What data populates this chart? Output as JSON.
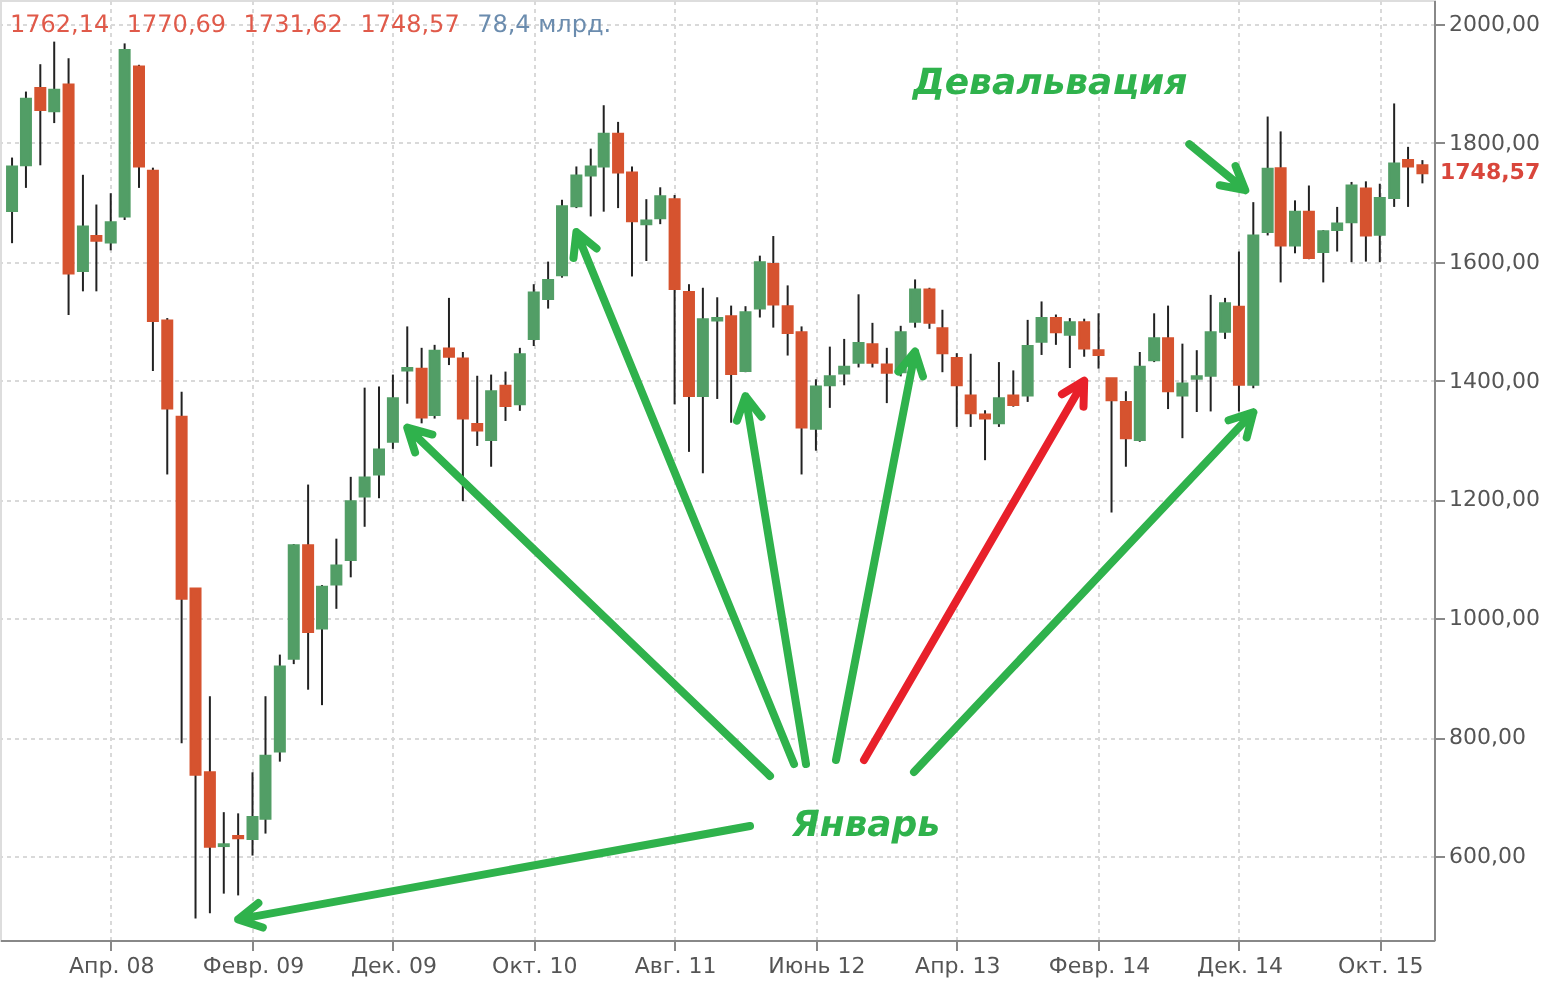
{
  "chart_data": {
    "type": "candlestick",
    "x": [
      "2007-09",
      "2007-10",
      "2007-11",
      "2007-12",
      "2008-01",
      "2008-02",
      "2008-03",
      "2008-04",
      "2008-05",
      "2008-06",
      "2008-07",
      "2008-08",
      "2008-09",
      "2008-10",
      "2008-11",
      "2008-12",
      "2009-01",
      "2009-02",
      "2009-03",
      "2009-04",
      "2009-05",
      "2009-06",
      "2009-07",
      "2009-08",
      "2009-09",
      "2009-10",
      "2009-11",
      "2009-12",
      "2010-01",
      "2010-02",
      "2010-03",
      "2010-04",
      "2010-05",
      "2010-06",
      "2010-07",
      "2010-08",
      "2010-09",
      "2010-10",
      "2010-11",
      "2010-12",
      "2011-01",
      "2011-02",
      "2011-03",
      "2011-04",
      "2011-05",
      "2011-06",
      "2011-07",
      "2011-08",
      "2011-09",
      "2011-10",
      "2011-11",
      "2011-12",
      "2012-01",
      "2012-02",
      "2012-03",
      "2012-04",
      "2012-05",
      "2012-06",
      "2012-07",
      "2012-08",
      "2012-09",
      "2012-10",
      "2012-11",
      "2012-12",
      "2013-01",
      "2013-02",
      "2013-03",
      "2013-04",
      "2013-05",
      "2013-06",
      "2013-07",
      "2013-08",
      "2013-09",
      "2013-10",
      "2013-11",
      "2013-12",
      "2014-01",
      "2014-02",
      "2014-03",
      "2014-04",
      "2014-05",
      "2014-06",
      "2014-07",
      "2014-08",
      "2014-09",
      "2014-10",
      "2014-11",
      "2014-12",
      "2015-01",
      "2015-02",
      "2015-03",
      "2015-04",
      "2015-05",
      "2015-06",
      "2015-07",
      "2015-08",
      "2015-09",
      "2015-10",
      "2015-11",
      "2015-12",
      "2016-01"
    ],
    "ohlc": [
      [
        1685,
        1775,
        1631,
        1760
      ],
      [
        1762,
        1886,
        1724,
        1874
      ],
      [
        1892,
        1932,
        1762,
        1855
      ],
      [
        1853,
        1970,
        1833,
        1889
      ],
      [
        1898,
        1942,
        1510,
        1580
      ],
      [
        1584,
        1746,
        1550,
        1659
      ],
      [
        1643,
        1696,
        1550,
        1635
      ],
      [
        1632,
        1715,
        1619,
        1666
      ],
      [
        1676,
        1967,
        1670,
        1956
      ],
      [
        1928,
        1931,
        1724,
        1760
      ],
      [
        1753,
        1758,
        1416,
        1500
      ],
      [
        1501,
        1505,
        1242,
        1353
      ],
      [
        1339,
        1381,
        790,
        1033
      ],
      [
        1050,
        1050,
        495,
        737
      ],
      [
        741,
        869,
        504,
        616
      ],
      [
        617,
        674,
        537,
        620
      ],
      [
        634,
        672,
        534,
        630
      ],
      [
        629,
        741,
        601,
        666
      ],
      [
        663,
        869,
        638,
        769
      ],
      [
        776,
        939,
        759,
        919
      ],
      [
        932,
        1125,
        923,
        1123
      ],
      [
        1123,
        1225,
        880,
        977
      ],
      [
        983,
        1056,
        854,
        1053
      ],
      [
        1057,
        1134,
        1016,
        1089
      ],
      [
        1098,
        1238,
        1069,
        1197
      ],
      [
        1205,
        1388,
        1154,
        1237
      ],
      [
        1242,
        1390,
        1202,
        1284
      ],
      [
        1297,
        1410,
        1285,
        1370
      ],
      [
        1417,
        1491,
        1361,
        1421
      ],
      [
        1420,
        1455,
        1328,
        1338
      ],
      [
        1342,
        1460,
        1336,
        1450
      ],
      [
        1454,
        1539,
        1426,
        1440
      ],
      [
        1437,
        1448,
        1197,
        1336
      ],
      [
        1327,
        1408,
        1290,
        1316
      ],
      [
        1300,
        1410,
        1255,
        1382
      ],
      [
        1391,
        1415,
        1332,
        1357
      ],
      [
        1360,
        1455,
        1349,
        1444
      ],
      [
        1470,
        1562,
        1458,
        1548
      ],
      [
        1537,
        1600,
        1521,
        1569
      ],
      [
        1577,
        1704,
        1573,
        1693
      ],
      [
        1693,
        1760,
        1690,
        1745
      ],
      [
        1745,
        1790,
        1676,
        1760
      ],
      [
        1760,
        1863,
        1684,
        1815
      ],
      [
        1815,
        1835,
        1690,
        1750
      ],
      [
        1750,
        1760,
        1575,
        1668
      ],
      [
        1663,
        1705,
        1601,
        1669
      ],
      [
        1673,
        1725,
        1663,
        1710
      ],
      [
        1705,
        1712,
        1360,
        1554
      ],
      [
        1549,
        1562,
        1280,
        1374
      ],
      [
        1374,
        1556,
        1244,
        1503
      ],
      [
        1501,
        1540,
        1369,
        1505
      ],
      [
        1508,
        1526,
        1329,
        1411
      ],
      [
        1416,
        1525,
        1414,
        1515
      ],
      [
        1521,
        1610,
        1506,
        1599
      ],
      [
        1596,
        1643,
        1489,
        1528
      ],
      [
        1525,
        1560,
        1442,
        1480
      ],
      [
        1481,
        1491,
        1242,
        1321
      ],
      [
        1319,
        1402,
        1282,
        1390
      ],
      [
        1392,
        1457,
        1354,
        1407
      ],
      [
        1412,
        1470,
        1392,
        1423
      ],
      [
        1430,
        1545,
        1422,
        1463
      ],
      [
        1461,
        1497,
        1422,
        1430
      ],
      [
        1427,
        1455,
        1362,
        1413
      ],
      [
        1414,
        1492,
        1407,
        1481
      ],
      [
        1499,
        1570,
        1489,
        1553
      ],
      [
        1553,
        1556,
        1487,
        1497
      ],
      [
        1488,
        1519,
        1414,
        1446
      ],
      [
        1438,
        1446,
        1322,
        1392
      ],
      [
        1375,
        1445,
        1322,
        1345
      ],
      [
        1343,
        1350,
        1266,
        1336
      ],
      [
        1328,
        1431,
        1322,
        1370
      ],
      [
        1375,
        1417,
        1356,
        1359
      ],
      [
        1375,
        1502,
        1364,
        1458
      ],
      [
        1465,
        1533,
        1443,
        1505
      ],
      [
        1505,
        1511,
        1460,
        1481
      ],
      [
        1477,
        1505,
        1421,
        1498
      ],
      [
        1498,
        1504,
        1440,
        1454
      ],
      [
        1451,
        1513,
        1420,
        1443
      ],
      [
        1404,
        1404,
        1178,
        1367
      ],
      [
        1364,
        1382,
        1255,
        1303
      ],
      [
        1300,
        1448,
        1297,
        1423
      ],
      [
        1434,
        1513,
        1431,
        1471
      ],
      [
        1471,
        1526,
        1352,
        1382
      ],
      [
        1375,
        1462,
        1303,
        1395
      ],
      [
        1403,
        1451,
        1347,
        1407
      ],
      [
        1408,
        1544,
        1348,
        1481
      ],
      [
        1482,
        1539,
        1470,
        1530
      ],
      [
        1524,
        1617,
        1348,
        1393
      ],
      [
        1393,
        1700,
        1387,
        1644
      ],
      [
        1650,
        1844,
        1644,
        1756
      ],
      [
        1757,
        1819,
        1565,
        1627
      ],
      [
        1627,
        1703,
        1614,
        1684
      ],
      [
        1684,
        1728,
        1604,
        1606
      ],
      [
        1616,
        1653,
        1565,
        1651
      ],
      [
        1653,
        1692,
        1617,
        1664
      ],
      [
        1666,
        1734,
        1599,
        1728
      ],
      [
        1723,
        1735,
        1600,
        1644
      ],
      [
        1645,
        1731,
        1599,
        1707
      ],
      [
        1707,
        1866,
        1692,
        1765
      ],
      [
        1771,
        1793,
        1692,
        1760
      ],
      [
        1762.14,
        1770.69,
        1731.62,
        1748.57
      ]
    ],
    "colors": [
      "#529e66",
      "#529e66",
      "#d6532f",
      "#529e66",
      "#d6532f",
      "#529e66",
      "#d6532f",
      "#529e66",
      "#529e66",
      "#d6532f",
      "#d6532f",
      "#d6532f",
      "#d6532f",
      "#d6532f",
      "#d6532f",
      "#529e66",
      "#d6532f",
      "#529e66",
      "#529e66",
      "#529e66",
      "#529e66",
      "#d6532f",
      "#529e66",
      "#529e66",
      "#529e66",
      "#529e66",
      "#529e66",
      "#529e66",
      "#529e66",
      "#d6532f",
      "#529e66",
      "#d6532f",
      "#d6532f",
      "#d6532f",
      "#529e66",
      "#d6532f",
      "#529e66",
      "#529e66",
      "#529e66",
      "#529e66",
      "#529e66",
      "#529e66",
      "#529e66",
      "#d6532f",
      "#d6532f",
      "#529e66",
      "#529e66",
      "#d6532f",
      "#d6532f",
      "#529e66",
      "#529e66",
      "#d6532f",
      "#529e66",
      "#529e66",
      "#d6532f",
      "#d6532f",
      "#d6532f",
      "#529e66",
      "#529e66",
      "#529e66",
      "#529e66",
      "#d6532f",
      "#d6532f",
      "#529e66",
      "#529e66",
      "#d6532f",
      "#d6532f",
      "#d6532f",
      "#d6532f",
      "#d6532f",
      "#529e66",
      "#d6532f",
      "#529e66",
      "#529e66",
      "#d6532f",
      "#529e66",
      "#d6532f",
      "#d6532f",
      "#d6532f",
      "#d6532f",
      "#529e66",
      "#529e66",
      "#d6532f",
      "#529e66",
      "#529e66",
      "#529e66",
      "#529e66",
      "#d6532f",
      "#529e66",
      "#529e66",
      "#d6532f",
      "#529e66",
      "#d6532f",
      "#529e66",
      "#529e66",
      "#529e66",
      "#d6532f",
      "#529e66",
      "#529e66",
      "#d6532f",
      "#d6532f"
    ],
    "xlim": [
      "2007-08-06",
      "2016-01-26"
    ],
    "xticks": [
      {
        "value": "2008-04",
        "label": "Апр. 08"
      },
      {
        "value": "2009-02",
        "label": "Февр. 09"
      },
      {
        "value": "2009-12",
        "label": "Дек. 09"
      },
      {
        "value": "2010-10",
        "label": "Окт. 10"
      },
      {
        "value": "2011-08",
        "label": "Авг. 11"
      },
      {
        "value": "2012-06",
        "label": "Июнь 12"
      },
      {
        "value": "2013-04",
        "label": "Апр. 13"
      },
      {
        "value": "2014-02",
        "label": "Февр. 14"
      },
      {
        "value": "2014-12",
        "label": "Дек. 14"
      },
      {
        "value": "2015-10",
        "label": "Окт. 15"
      }
    ],
    "ylim": [
      459,
      2040
    ],
    "yticks": [
      {
        "value": 600,
        "label": "600,00"
      },
      {
        "value": 800,
        "label": "800,00"
      },
      {
        "value": 1000,
        "label": "1000,00"
      },
      {
        "value": 1200,
        "label": "1200,00"
      },
      {
        "value": 1400,
        "label": "1400,00"
      },
      {
        "value": 1600,
        "label": "1600,00"
      },
      {
        "value": 1800,
        "label": "1800,00"
      },
      {
        "value": 2000,
        "label": "2000,00"
      }
    ],
    "grid": true,
    "annotations": [
      "1762,14",
      "1770,69",
      "1731,62",
      "1748,57",
      "78,4 млрд.",
      "1748,57",
      "Девальвация",
      "Январь"
    ]
  }
}
